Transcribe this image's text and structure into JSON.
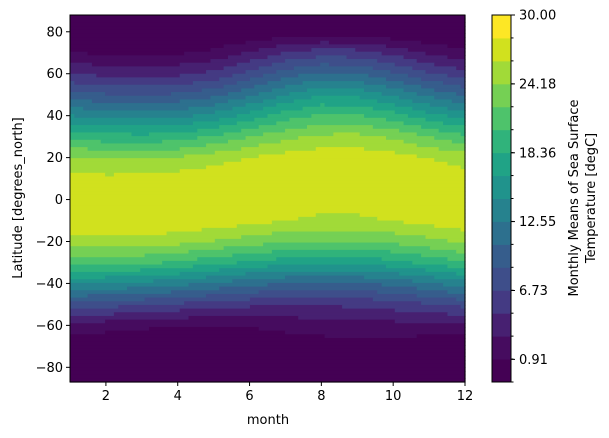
{
  "chart_data": {
    "type": "contour",
    "title": "",
    "xlabel": "month",
    "ylabel": "Latitude [degrees_north]",
    "xlim": [
      1,
      12
    ],
    "ylim": [
      -87,
      88
    ],
    "x_ticks": [
      2,
      4,
      6,
      8,
      10,
      12
    ],
    "y_ticks": [
      -80,
      -60,
      -40,
      -20,
      0,
      20,
      40,
      60,
      80
    ],
    "colorbar": {
      "label_line1": "Monthly Means of Sea Surface",
      "label_line2": "Temperature [degC]",
      "min": -1.0,
      "max": 30.0,
      "levels": 16,
      "tick_values": [
        0.91,
        6.73,
        12.55,
        18.36,
        24.18,
        30.0
      ],
      "tick_labels": [
        "0.91",
        "6.73",
        "12.55",
        "18.36",
        "24.18",
        "30.00"
      ],
      "colormap": [
        "#440154",
        "#46085c",
        "#471365",
        "#472777",
        "#443a83",
        "#3f4c8a",
        "#3b518b",
        "#33638d",
        "#2d708e",
        "#287d8e",
        "#228b8d",
        "#1f978b",
        "#20a386",
        "#29af7f",
        "#3dbc74",
        "#56c667",
        "#75d054",
        "#95d840",
        "#b8de29",
        "#dde318",
        "#fde725"
      ]
    },
    "x": [
      1,
      2,
      3,
      4,
      5,
      6,
      7,
      8,
      9,
      10,
      11,
      12
    ],
    "latitudes": [
      -87,
      -80,
      -70,
      -60,
      -50,
      -40,
      -30,
      -20,
      -10,
      0,
      10,
      20,
      30,
      40,
      50,
      60,
      70,
      80,
      88
    ],
    "values": [
      [
        -1.5,
        -1.5,
        -1.5,
        -1.5,
        -1.5,
        -1.5,
        -1.5,
        -1.5,
        -1.5,
        -1.5,
        -1.5,
        -1.5
      ],
      [
        -1.5,
        -1.5,
        -1.5,
        -1.5,
        -1.5,
        -1.5,
        -1.5,
        -1.5,
        -1.5,
        -1.5,
        -1.5,
        -1.5
      ],
      [
        -0.5,
        -0.8,
        -1.0,
        -1.1,
        -1.0,
        -0.6,
        -0.2,
        0.0,
        0.0,
        -0.2,
        -0.4,
        -0.5
      ],
      [
        2.2,
        1.8,
        1.4,
        1.0,
        0.9,
        1.1,
        1.5,
        1.9,
        2.1,
        2.2,
        2.3,
        2.3
      ],
      [
        8.0,
        7.6,
        7.1,
        6.4,
        5.8,
        5.3,
        5.0,
        5.0,
        5.3,
        5.8,
        6.6,
        7.4
      ],
      [
        14.8,
        14.5,
        14.0,
        13.3,
        12.3,
        11.3,
        10.6,
        10.3,
        10.5,
        11.2,
        12.4,
        13.8
      ],
      [
        21.3,
        21.2,
        20.8,
        20.1,
        19.1,
        18.1,
        17.3,
        17.0,
        17.1,
        17.8,
        19.0,
        20.3
      ],
      [
        25.2,
        25.4,
        25.3,
        24.9,
        24.1,
        23.2,
        22.6,
        22.3,
        22.3,
        22.8,
        23.6,
        24.6
      ],
      [
        27.7,
        27.9,
        27.9,
        27.8,
        27.4,
        26.8,
        26.2,
        25.8,
        25.8,
        26.2,
        26.9,
        27.5
      ],
      [
        27.5,
        27.6,
        27.8,
        27.9,
        27.8,
        27.5,
        27.1,
        26.9,
        26.9,
        27.0,
        27.2,
        27.4
      ],
      [
        26.8,
        26.6,
        26.7,
        27.1,
        27.6,
        27.9,
        27.9,
        27.9,
        27.9,
        27.8,
        27.5,
        27.1
      ],
      [
        24.5,
        24.0,
        23.9,
        24.3,
        25.2,
        26.2,
        26.9,
        27.3,
        27.3,
        26.9,
        26.1,
        25.2
      ],
      [
        19.6,
        19.1,
        18.9,
        19.3,
        20.5,
        22.2,
        23.6,
        24.6,
        24.7,
        23.8,
        22.2,
        20.7
      ],
      [
        14.5,
        13.9,
        13.7,
        14.0,
        15.2,
        17.2,
        19.3,
        20.7,
        20.6,
        19.2,
        17.1,
        15.5
      ],
      [
        9.5,
        8.8,
        8.6,
        8.9,
        10.0,
        12.2,
        14.6,
        16.2,
        15.9,
        14.2,
        12.0,
        10.4
      ],
      [
        4.8,
        4.3,
        4.1,
        4.4,
        5.3,
        7.3,
        9.6,
        11.0,
        10.6,
        9.0,
        7.0,
        5.6
      ],
      [
        1.0,
        0.6,
        0.5,
        0.7,
        1.4,
        3.0,
        4.9,
        5.9,
        5.6,
        4.2,
        2.5,
        1.4
      ],
      [
        -1.5,
        -1.5,
        -1.5,
        -1.5,
        -1.4,
        -1.0,
        -0.4,
        -0.2,
        -0.3,
        -0.8,
        -1.3,
        -1.5
      ],
      [
        -1.5,
        -1.5,
        -1.5,
        -1.5,
        -1.5,
        -1.5,
        -1.5,
        -1.5,
        -1.5,
        -1.5,
        -1.5,
        -1.5
      ]
    ]
  }
}
